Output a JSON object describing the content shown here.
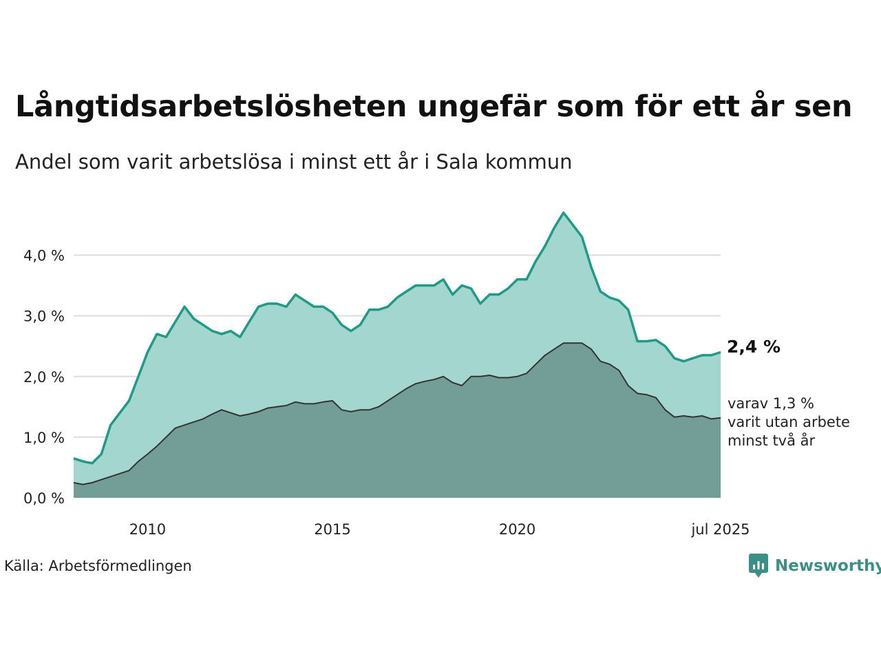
{
  "title": "Långtidsarbetslösheten ungefär som för ett år sen",
  "subtitle": "Andel som varit arbetslösa i minst ett år i Sala kommun",
  "source": "Källa: Arbetsförmedlingen",
  "brand": "Newsworthy",
  "chart_data": {
    "type": "area",
    "y_ticks": [
      "0,0 %",
      "1,0 %",
      "2,0 %",
      "3,0 %",
      "4,0 %"
    ],
    "y_tick_values": [
      0,
      1,
      2,
      3,
      4
    ],
    "x_ticks": [
      "2010",
      "2015",
      "2020",
      "jul 2025"
    ],
    "x_tick_values": [
      2010,
      2015,
      2020,
      2025.5
    ],
    "xlim": [
      2008.0,
      2025.5
    ],
    "ylim": [
      0,
      4.8
    ],
    "grid": true,
    "end_label": "2,4 %",
    "sub_label_lines": [
      "varav 1,3 %",
      "varit utan arbete",
      "minst två år"
    ],
    "colors": {
      "long": "#1f9a86",
      "long_fill": "#a3d6cf",
      "very_long": "#333333",
      "very_long_fill": "#729e97"
    },
    "series": [
      {
        "x": [
          2008.0,
          2008.25,
          2008.5,
          2008.75,
          2009.0,
          2009.25,
          2009.5,
          2009.75,
          2010.0,
          2010.25,
          2010.5,
          2010.75,
          2011.0,
          2011.25,
          2011.5,
          2011.75,
          2012.0,
          2012.25,
          2012.5,
          2012.75,
          2013.0,
          2013.25,
          2013.5,
          2013.75,
          2014.0,
          2014.25,
          2014.5,
          2014.75,
          2015.0,
          2015.25,
          2015.5,
          2015.75,
          2016.0,
          2016.25,
          2016.5,
          2016.75,
          2017.0,
          2017.25,
          2017.5,
          2017.75,
          2018.0,
          2018.25,
          2018.5,
          2018.75,
          2019.0,
          2019.25,
          2019.5,
          2019.75,
          2020.0,
          2020.25,
          2020.5,
          2020.75,
          2021.0,
          2021.25,
          2021.5,
          2021.75,
          2022.0,
          2022.25,
          2022.5,
          2022.75,
          2023.0,
          2023.25,
          2023.5,
          2023.75,
          2024.0,
          2024.25,
          2024.5,
          2024.75,
          2025.0,
          2025.25,
          2025.5
        ],
        "values": [
          0.65,
          0.6,
          0.57,
          0.72,
          1.2,
          1.4,
          1.6,
          2.0,
          2.4,
          2.7,
          2.65,
          2.9,
          3.15,
          2.95,
          2.85,
          2.75,
          2.7,
          2.75,
          2.65,
          2.9,
          3.15,
          3.2,
          3.2,
          3.15,
          3.35,
          3.25,
          3.15,
          3.15,
          3.05,
          2.85,
          2.75,
          2.85,
          3.1,
          3.1,
          3.15,
          3.3,
          3.4,
          3.5,
          3.5,
          3.5,
          3.6,
          3.35,
          3.5,
          3.45,
          3.2,
          3.35,
          3.35,
          3.45,
          3.6,
          3.6,
          3.9,
          4.15,
          4.45,
          4.7,
          4.5,
          4.3,
          3.8,
          3.4,
          3.3,
          3.25,
          3.1,
          2.58,
          2.58,
          2.6,
          2.5,
          2.3,
          2.25,
          2.3,
          2.35,
          2.35,
          2.4
        ]
      },
      {
        "x": [
          2008.0,
          2008.25,
          2008.5,
          2008.75,
          2009.0,
          2009.25,
          2009.5,
          2009.75,
          2010.0,
          2010.25,
          2010.5,
          2010.75,
          2011.0,
          2011.25,
          2011.5,
          2011.75,
          2012.0,
          2012.25,
          2012.5,
          2012.75,
          2013.0,
          2013.25,
          2013.5,
          2013.75,
          2014.0,
          2014.25,
          2014.5,
          2014.75,
          2015.0,
          2015.25,
          2015.5,
          2015.75,
          2016.0,
          2016.25,
          2016.5,
          2016.75,
          2017.0,
          2017.25,
          2017.5,
          2017.75,
          2018.0,
          2018.25,
          2018.5,
          2018.75,
          2019.0,
          2019.25,
          2019.5,
          2019.75,
          2020.0,
          2020.25,
          2020.5,
          2020.75,
          2021.0,
          2021.25,
          2021.5,
          2021.75,
          2022.0,
          2022.25,
          2022.5,
          2022.75,
          2023.0,
          2023.25,
          2023.5,
          2023.75,
          2024.0,
          2024.25,
          2024.5,
          2024.75,
          2025.0,
          2025.25,
          2025.5
        ],
        "values": [
          0.25,
          0.22,
          0.25,
          0.3,
          0.35,
          0.4,
          0.45,
          0.6,
          0.72,
          0.85,
          1.0,
          1.15,
          1.2,
          1.25,
          1.3,
          1.38,
          1.45,
          1.4,
          1.35,
          1.38,
          1.42,
          1.48,
          1.5,
          1.52,
          1.58,
          1.55,
          1.55,
          1.58,
          1.6,
          1.45,
          1.42,
          1.45,
          1.45,
          1.5,
          1.6,
          1.7,
          1.8,
          1.88,
          1.92,
          1.95,
          2.0,
          1.9,
          1.85,
          2.0,
          2.0,
          2.02,
          1.98,
          1.98,
          2.0,
          2.05,
          2.2,
          2.35,
          2.45,
          2.55,
          2.55,
          2.55,
          2.45,
          2.25,
          2.2,
          2.1,
          1.85,
          1.72,
          1.7,
          1.65,
          1.45,
          1.33,
          1.35,
          1.33,
          1.35,
          1.3,
          1.32
        ]
      }
    ]
  }
}
